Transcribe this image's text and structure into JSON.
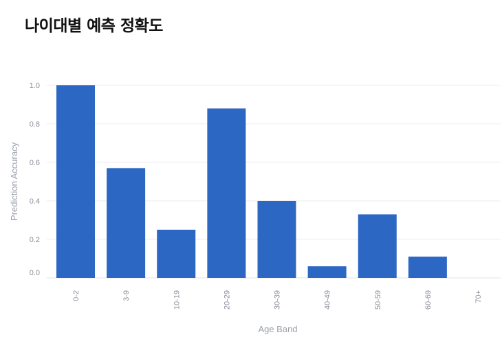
{
  "page": {
    "title": "나이대별 예측 정확도"
  },
  "chart_data": {
    "type": "bar",
    "categories": [
      "0-2",
      "3-9",
      "10-19",
      "20-29",
      "30-39",
      "40-49",
      "50-59",
      "60-69",
      "70+"
    ],
    "values": [
      1.0,
      0.57,
      0.25,
      0.88,
      0.4,
      0.06,
      0.33,
      0.11,
      0
    ],
    "xlabel": "Age Band",
    "ylabel": "Prediction Accuracy",
    "ylim": [
      0,
      1.0
    ],
    "yticks": [
      "0.0",
      "0.2",
      "0.4",
      "0.6",
      "0.8",
      "1.0"
    ],
    "grid": true,
    "legend": "none",
    "bar_color": "#2d67c4"
  }
}
